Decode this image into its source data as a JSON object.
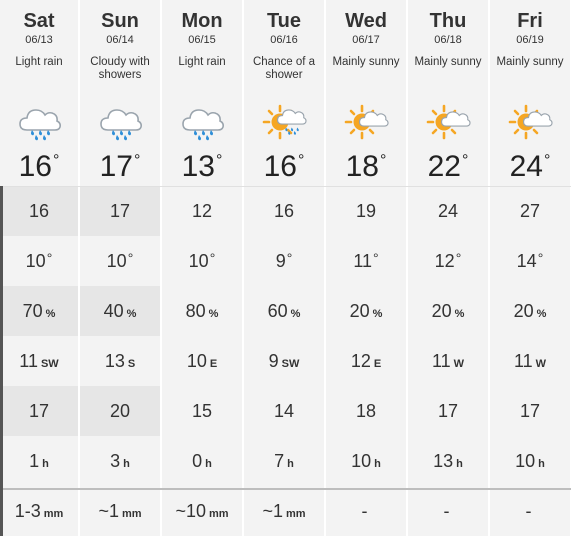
{
  "days": [
    {
      "name": "Sat",
      "date": "06/13",
      "condition": "Light rain",
      "icon": "light-rain-icon",
      "temp": "16",
      "feels": "16",
      "low": "10",
      "pop": "70",
      "wind": "11",
      "wind_dir": "SW",
      "gust": "17",
      "rain_hours": "1",
      "precip": "1-3",
      "precip_unit": "mm"
    },
    {
      "name": "Sun",
      "date": "06/14",
      "condition": "Cloudy with showers",
      "icon": "cloudy-showers-icon",
      "temp": "17",
      "feels": "17",
      "low": "10",
      "pop": "40",
      "wind": "13",
      "wind_dir": "S",
      "gust": "20",
      "rain_hours": "3",
      "precip": "~1",
      "precip_unit": "mm"
    },
    {
      "name": "Mon",
      "date": "06/15",
      "condition": "Light rain",
      "icon": "light-rain-icon",
      "temp": "13",
      "feels": "12",
      "low": "10",
      "pop": "80",
      "wind": "10",
      "wind_dir": "E",
      "gust": "15",
      "rain_hours": "0",
      "precip": "~10",
      "precip_unit": "mm"
    },
    {
      "name": "Tue",
      "date": "06/16",
      "condition": "Chance of a shower",
      "icon": "sun-shower-icon",
      "temp": "16",
      "feels": "16",
      "low": "9",
      "pop": "60",
      "wind": "9",
      "wind_dir": "SW",
      "gust": "14",
      "rain_hours": "7",
      "precip": "~1",
      "precip_unit": "mm"
    },
    {
      "name": "Wed",
      "date": "06/17",
      "condition": "Mainly sunny",
      "icon": "mainly-sunny-icon",
      "temp": "18",
      "feels": "19",
      "low": "11",
      "pop": "20",
      "wind": "12",
      "wind_dir": "E",
      "gust": "18",
      "rain_hours": "10",
      "precip": "-",
      "precip_unit": ""
    },
    {
      "name": "Thu",
      "date": "06/18",
      "condition": "Mainly sunny",
      "icon": "mainly-sunny-icon",
      "temp": "22",
      "feels": "24",
      "low": "12",
      "pop": "20",
      "wind": "11",
      "wind_dir": "W",
      "gust": "17",
      "rain_hours": "13",
      "precip": "-",
      "precip_unit": ""
    },
    {
      "name": "Fri",
      "date": "06/19",
      "condition": "Mainly sunny",
      "icon": "mainly-sunny-icon",
      "temp": "24",
      "feels": "27",
      "low": "14",
      "pop": "20",
      "wind": "11",
      "wind_dir": "W",
      "gust": "17",
      "rain_hours": "10",
      "precip": "-",
      "precip_unit": ""
    }
  ],
  "units": {
    "degree": "°",
    "percent": "%",
    "hours": "h"
  },
  "colors": {
    "sun": "#f5a623",
    "cloud": "#ffffff",
    "cloud_outline": "#9aa4ad",
    "rain": "#2f8fd8",
    "highlight": "#e6e6e6",
    "column": "#f3f3f3"
  }
}
